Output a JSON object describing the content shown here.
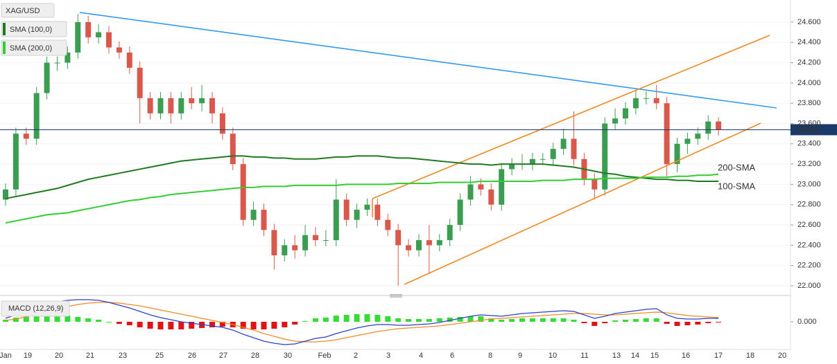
{
  "chart_data": {
    "type": "candlestick",
    "title": "XAG/USD",
    "x_labels": [
      "Jan",
      "19",
      "20",
      "21",
      "23",
      "25",
      "26",
      "27",
      "28",
      "30",
      "Feb",
      "2",
      "3",
      "4",
      "6",
      "8",
      "9",
      "10",
      "11",
      "13",
      "14",
      "15",
      "16",
      "17",
      "18",
      "20"
    ],
    "open": [
      22.85,
      22.95,
      23.5,
      23.45,
      23.9,
      24.2,
      24.2,
      24.3,
      24.6,
      24.45,
      24.5,
      24.35,
      24.3,
      24.15,
      23.85,
      23.7,
      23.85,
      23.7,
      23.85,
      23.8,
      23.85,
      23.7,
      23.5,
      23.2,
      22.65,
      22.75,
      22.55,
      22.3,
      22.4,
      22.35,
      22.5,
      22.45,
      22.45,
      22.85,
      22.65,
      22.75,
      22.8,
      22.65,
      22.55,
      22.4,
      22.35,
      22.45,
      22.4,
      22.45,
      22.6,
      22.85,
      23.0,
      22.95,
      22.8,
      23.15,
      23.2,
      23.2,
      23.25,
      23.25,
      23.35,
      23.45,
      23.25,
      23.05,
      22.95,
      23.6,
      23.65,
      23.75,
      23.85,
      23.85,
      23.8,
      23.2,
      23.4,
      23.45,
      23.5,
      23.62
    ],
    "high": [
      23.01,
      23.56,
      23.56,
      23.96,
      24.26,
      24.26,
      24.36,
      24.68,
      24.66,
      24.58,
      24.56,
      24.41,
      24.36,
      24.21,
      23.91,
      23.91,
      23.91,
      23.91,
      23.96,
      23.98,
      23.91,
      23.76,
      23.56,
      23.26,
      22.83,
      22.81,
      22.61,
      22.46,
      22.5,
      22.6,
      22.58,
      22.55,
      23.05,
      22.91,
      22.81,
      22.86,
      22.86,
      22.71,
      22.61,
      22.46,
      22.51,
      22.6,
      22.51,
      22.66,
      22.91,
      23.08,
      23.06,
      23.01,
      23.21,
      23.26,
      23.3,
      23.31,
      23.31,
      23.41,
      23.55,
      23.72,
      23.31,
      23.11,
      23.66,
      23.75,
      23.81,
      23.93,
      23.92,
      23.98,
      23.86,
      23.46,
      23.51,
      23.56,
      23.68,
      23.66
    ],
    "low": [
      22.79,
      22.89,
      23.39,
      23.39,
      23.84,
      24.12,
      24.14,
      24.24,
      24.39,
      24.39,
      24.29,
      24.24,
      24.09,
      23.6,
      23.64,
      23.64,
      23.6,
      23.64,
      23.74,
      23.72,
      23.6,
      23.44,
      23.14,
      22.59,
      22.59,
      22.49,
      22.16,
      22.24,
      22.27,
      22.29,
      22.39,
      22.39,
      22.39,
      22.59,
      22.57,
      22.69,
      22.59,
      22.49,
      22.0,
      22.29,
      22.29,
      22.12,
      22.34,
      22.39,
      22.54,
      22.79,
      22.89,
      22.74,
      22.74,
      23.09,
      23.14,
      23.14,
      23.19,
      23.19,
      23.29,
      23.19,
      22.99,
      22.85,
      22.89,
      23.54,
      23.59,
      23.69,
      23.79,
      23.74,
      23.08,
      23.12,
      23.3,
      23.39,
      23.44,
      23.48
    ],
    "close": [
      22.95,
      23.5,
      23.45,
      23.9,
      24.2,
      24.2,
      24.3,
      24.6,
      24.45,
      24.5,
      24.35,
      24.3,
      24.15,
      23.85,
      23.7,
      23.85,
      23.7,
      23.85,
      23.8,
      23.85,
      23.7,
      23.5,
      23.2,
      22.65,
      22.75,
      22.55,
      22.3,
      22.4,
      22.35,
      22.5,
      22.45,
      22.45,
      22.85,
      22.65,
      22.75,
      22.8,
      22.65,
      22.55,
      22.4,
      22.35,
      22.45,
      22.4,
      22.45,
      22.6,
      22.85,
      23.0,
      22.95,
      22.8,
      23.15,
      23.2,
      23.2,
      23.25,
      23.25,
      23.35,
      23.45,
      23.25,
      23.05,
      22.95,
      23.6,
      23.65,
      23.75,
      23.85,
      23.85,
      23.8,
      23.2,
      23.4,
      23.45,
      23.5,
      23.62,
      23.54
    ],
    "up_color": "#3a9d52",
    "down_color": "#d9584b",
    "ylim": [
      21.918,
      24.818
    ],
    "yticks": [
      {
        "value": 22.0,
        "label": "22.000"
      },
      {
        "value": 22.2,
        "label": "22.200"
      },
      {
        "value": 22.4,
        "label": "22.400"
      },
      {
        "value": 22.6,
        "label": "22.600"
      },
      {
        "value": 22.8,
        "label": "22.800"
      },
      {
        "value": 23.0,
        "label": "23.000"
      },
      {
        "value": 23.2,
        "label": "23.200"
      },
      {
        "value": 23.4,
        "label": "23.400"
      },
      {
        "value": 23.6,
        "label": "23.600"
      },
      {
        "value": 23.8,
        "label": "23.800"
      },
      {
        "value": 24.0,
        "label": "24.000"
      },
      {
        "value": 24.2,
        "label": "24.200"
      },
      {
        "value": 24.4,
        "label": "24.400"
      },
      {
        "value": 24.6,
        "label": "24.600"
      }
    ],
    "last_price": 23.539,
    "overlays": [
      {
        "name": "SMA (100,0)",
        "label": "100-SMA",
        "color": "#1f7a1f",
        "values": [
          22.86,
          22.88,
          22.9,
          22.92,
          22.94,
          22.96,
          22.99,
          23.02,
          23.05,
          23.07,
          23.09,
          23.11,
          23.13,
          23.15,
          23.17,
          23.19,
          23.21,
          23.23,
          23.24,
          23.25,
          23.26,
          23.27,
          23.28,
          23.28,
          23.27,
          23.27,
          23.26,
          23.26,
          23.25,
          23.25,
          23.25,
          23.26,
          23.27,
          23.27,
          23.28,
          23.28,
          23.28,
          23.27,
          23.26,
          23.26,
          23.25,
          23.24,
          23.23,
          23.22,
          23.21,
          23.2,
          23.2,
          23.19,
          23.2,
          23.2,
          23.2,
          23.2,
          23.2,
          23.19,
          23.18,
          23.17,
          23.15,
          23.13,
          23.11,
          23.1,
          23.08,
          23.07,
          23.06,
          23.05,
          23.05,
          23.04,
          23.04,
          23.03,
          23.03,
          23.03
        ]
      },
      {
        "name": "SMA (200,0)",
        "label": "200-SMA",
        "color": "#33cc33",
        "values": [
          22.62,
          22.64,
          22.66,
          22.68,
          22.7,
          22.71,
          22.72,
          22.74,
          22.76,
          22.78,
          22.8,
          22.82,
          22.84,
          22.85,
          22.87,
          22.88,
          22.9,
          22.91,
          22.92,
          22.93,
          22.94,
          22.95,
          22.96,
          22.97,
          22.97,
          22.98,
          22.98,
          22.98,
          22.99,
          22.99,
          22.99,
          22.99,
          22.99,
          23.0,
          23.0,
          23.0,
          23.0,
          23.0,
          23.01,
          23.01,
          23.01,
          23.01,
          23.02,
          23.02,
          23.02,
          23.02,
          23.03,
          23.03,
          23.03,
          23.03,
          23.03,
          23.03,
          23.04,
          23.04,
          23.04,
          23.05,
          23.05,
          23.05,
          23.06,
          23.06,
          23.06,
          23.06,
          23.07,
          23.07,
          23.07,
          23.08,
          23.08,
          23.09,
          23.09,
          23.1
        ]
      }
    ],
    "macd": {
      "name": "MACD (12,26,9)",
      "ylim": [
        -0.4,
        0.35
      ],
      "yticks": [
        {
          "value": 0,
          "label": "0.000"
        }
      ],
      "macd": {
        "color": "#2a3fc9",
        "values": [
          0.05,
          0.1,
          0.16,
          0.22,
          0.26,
          0.29,
          0.31,
          0.32,
          0.32,
          0.31,
          0.28,
          0.24,
          0.2,
          0.15,
          0.1,
          0.06,
          0.03,
          0.0,
          -0.02,
          -0.04,
          -0.06,
          -0.08,
          -0.12,
          -0.18,
          -0.23,
          -0.28,
          -0.31,
          -0.33,
          -0.32,
          -0.28,
          -0.24,
          -0.22,
          -0.17,
          -0.13,
          -0.09,
          -0.06,
          -0.04,
          -0.04,
          -0.05,
          -0.05,
          -0.04,
          -0.03,
          -0.01,
          0.02,
          0.05,
          0.08,
          0.1,
          0.09,
          0.08,
          0.1,
          0.12,
          0.13,
          0.14,
          0.15,
          0.16,
          0.15,
          0.1,
          0.05,
          0.08,
          0.12,
          0.14,
          0.16,
          0.18,
          0.19,
          0.1,
          0.05,
          0.04,
          0.04,
          0.05,
          0.05
        ]
      },
      "signal": {
        "color": "#f08a24",
        "values": [
          0.02,
          0.04,
          0.07,
          0.11,
          0.15,
          0.19,
          0.22,
          0.25,
          0.27,
          0.28,
          0.28,
          0.27,
          0.25,
          0.23,
          0.2,
          0.17,
          0.14,
          0.11,
          0.08,
          0.05,
          0.02,
          -0.01,
          -0.04,
          -0.08,
          -0.12,
          -0.17,
          -0.21,
          -0.25,
          -0.28,
          -0.29,
          -0.29,
          -0.28,
          -0.26,
          -0.23,
          -0.2,
          -0.17,
          -0.14,
          -0.12,
          -0.1,
          -0.09,
          -0.08,
          -0.07,
          -0.06,
          -0.04,
          -0.02,
          0.0,
          0.02,
          0.04,
          0.05,
          0.06,
          0.07,
          0.08,
          0.09,
          0.1,
          0.11,
          0.12,
          0.12,
          0.11,
          0.1,
          0.1,
          0.11,
          0.12,
          0.13,
          0.14,
          0.13,
          0.11,
          0.09,
          0.08,
          0.07,
          0.06
        ]
      },
      "histogram": {
        "up_color": "#33dd33",
        "down_color": "#e01414",
        "values": [
          0.03,
          0.06,
          0.09,
          0.11,
          0.11,
          0.1,
          0.09,
          0.07,
          0.05,
          0.03,
          0.0,
          -0.03,
          -0.05,
          -0.08,
          -0.1,
          -0.11,
          -0.11,
          -0.11,
          -0.1,
          -0.09,
          -0.08,
          -0.07,
          -0.08,
          -0.1,
          -0.11,
          -0.11,
          -0.1,
          -0.08,
          -0.04,
          0.01,
          0.05,
          0.06,
          0.09,
          0.1,
          0.11,
          0.11,
          0.1,
          0.08,
          0.05,
          0.04,
          0.04,
          0.04,
          0.05,
          0.06,
          0.07,
          0.08,
          0.08,
          0.05,
          0.03,
          0.04,
          0.05,
          0.05,
          0.05,
          0.05,
          0.05,
          0.03,
          -0.02,
          -0.06,
          -0.02,
          0.02,
          0.03,
          0.04,
          0.05,
          0.05,
          -0.03,
          -0.06,
          -0.05,
          -0.04,
          -0.02,
          -0.01
        ]
      }
    }
  }
}
